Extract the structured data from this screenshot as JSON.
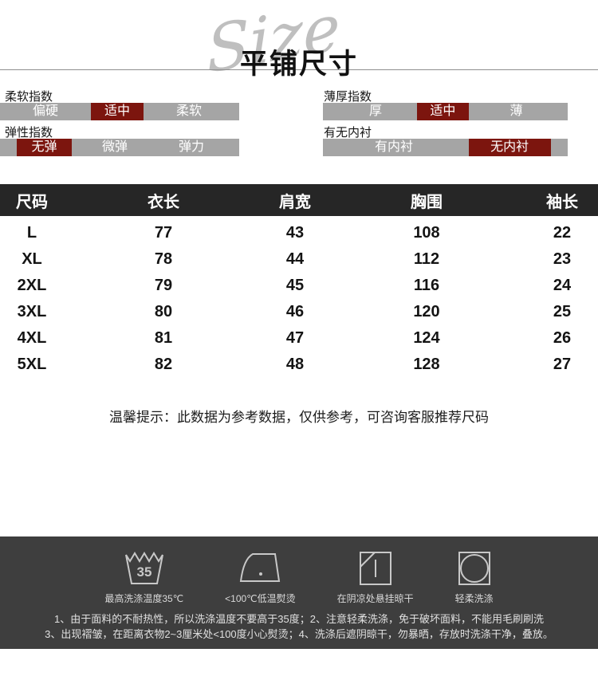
{
  "title": {
    "main": "平铺尺寸",
    "watermark": "Size"
  },
  "indexes": {
    "softness": {
      "label": "柔软指数",
      "options": [
        "偏硬",
        "适中",
        "柔软"
      ],
      "selected": "适中"
    },
    "thickness": {
      "label": "薄厚指数",
      "options": [
        "厚",
        "适中",
        "薄"
      ],
      "selected": "适中"
    },
    "elasticity": {
      "label": "弹性指数",
      "options": [
        "无弹",
        "微弹",
        "弹力"
      ],
      "selected": "无弹"
    },
    "lining": {
      "label": "有无内衬",
      "options": [
        "有内衬",
        "无内衬"
      ],
      "selected": "无内衬"
    }
  },
  "size_table": {
    "headers": [
      "尺码",
      "衣长",
      "肩宽",
      "胸围",
      "袖长"
    ],
    "rows": [
      [
        "L",
        "77",
        "43",
        "108",
        "22"
      ],
      [
        "XL",
        "78",
        "44",
        "112",
        "23"
      ],
      [
        "2XL",
        "79",
        "45",
        "116",
        "24"
      ],
      [
        "3XL",
        "80",
        "46",
        "120",
        "25"
      ],
      [
        "4XL",
        "81",
        "47",
        "124",
        "26"
      ],
      [
        "5XL",
        "82",
        "48",
        "128",
        "27"
      ]
    ]
  },
  "tip": "温馨提示：此数据为参考数据，仅供参考，可咨询客服推荐尺码",
  "care": {
    "icons": [
      {
        "name": "wash-temp-icon",
        "label": "最高洗涤温度35℃",
        "temp": "35"
      },
      {
        "name": "iron-icon",
        "label": "<100℃低温熨烫"
      },
      {
        "name": "hang-dry-icon",
        "label": "在阴凉处悬挂晾干"
      },
      {
        "name": "gentle-wash-icon",
        "label": "轻柔洗涤"
      }
    ],
    "notes": [
      "1、由于面料的不耐热性，所以洗涤温度不要高于35度；2、注意轻柔洗涤，免于破坏面料，不能用毛刷刷洗",
      "3、出现褶皱，在距离衣物2~3厘米处<100度小心熨烫；4、洗涤后遮阴晾干，勿暴晒，存放时洗涤干净，叠放。"
    ]
  },
  "colors": {
    "highlight": "#7c150e",
    "bar_gray": "#a5a5a5",
    "table_header": "#262626",
    "care_background": "#3e3e3e"
  }
}
